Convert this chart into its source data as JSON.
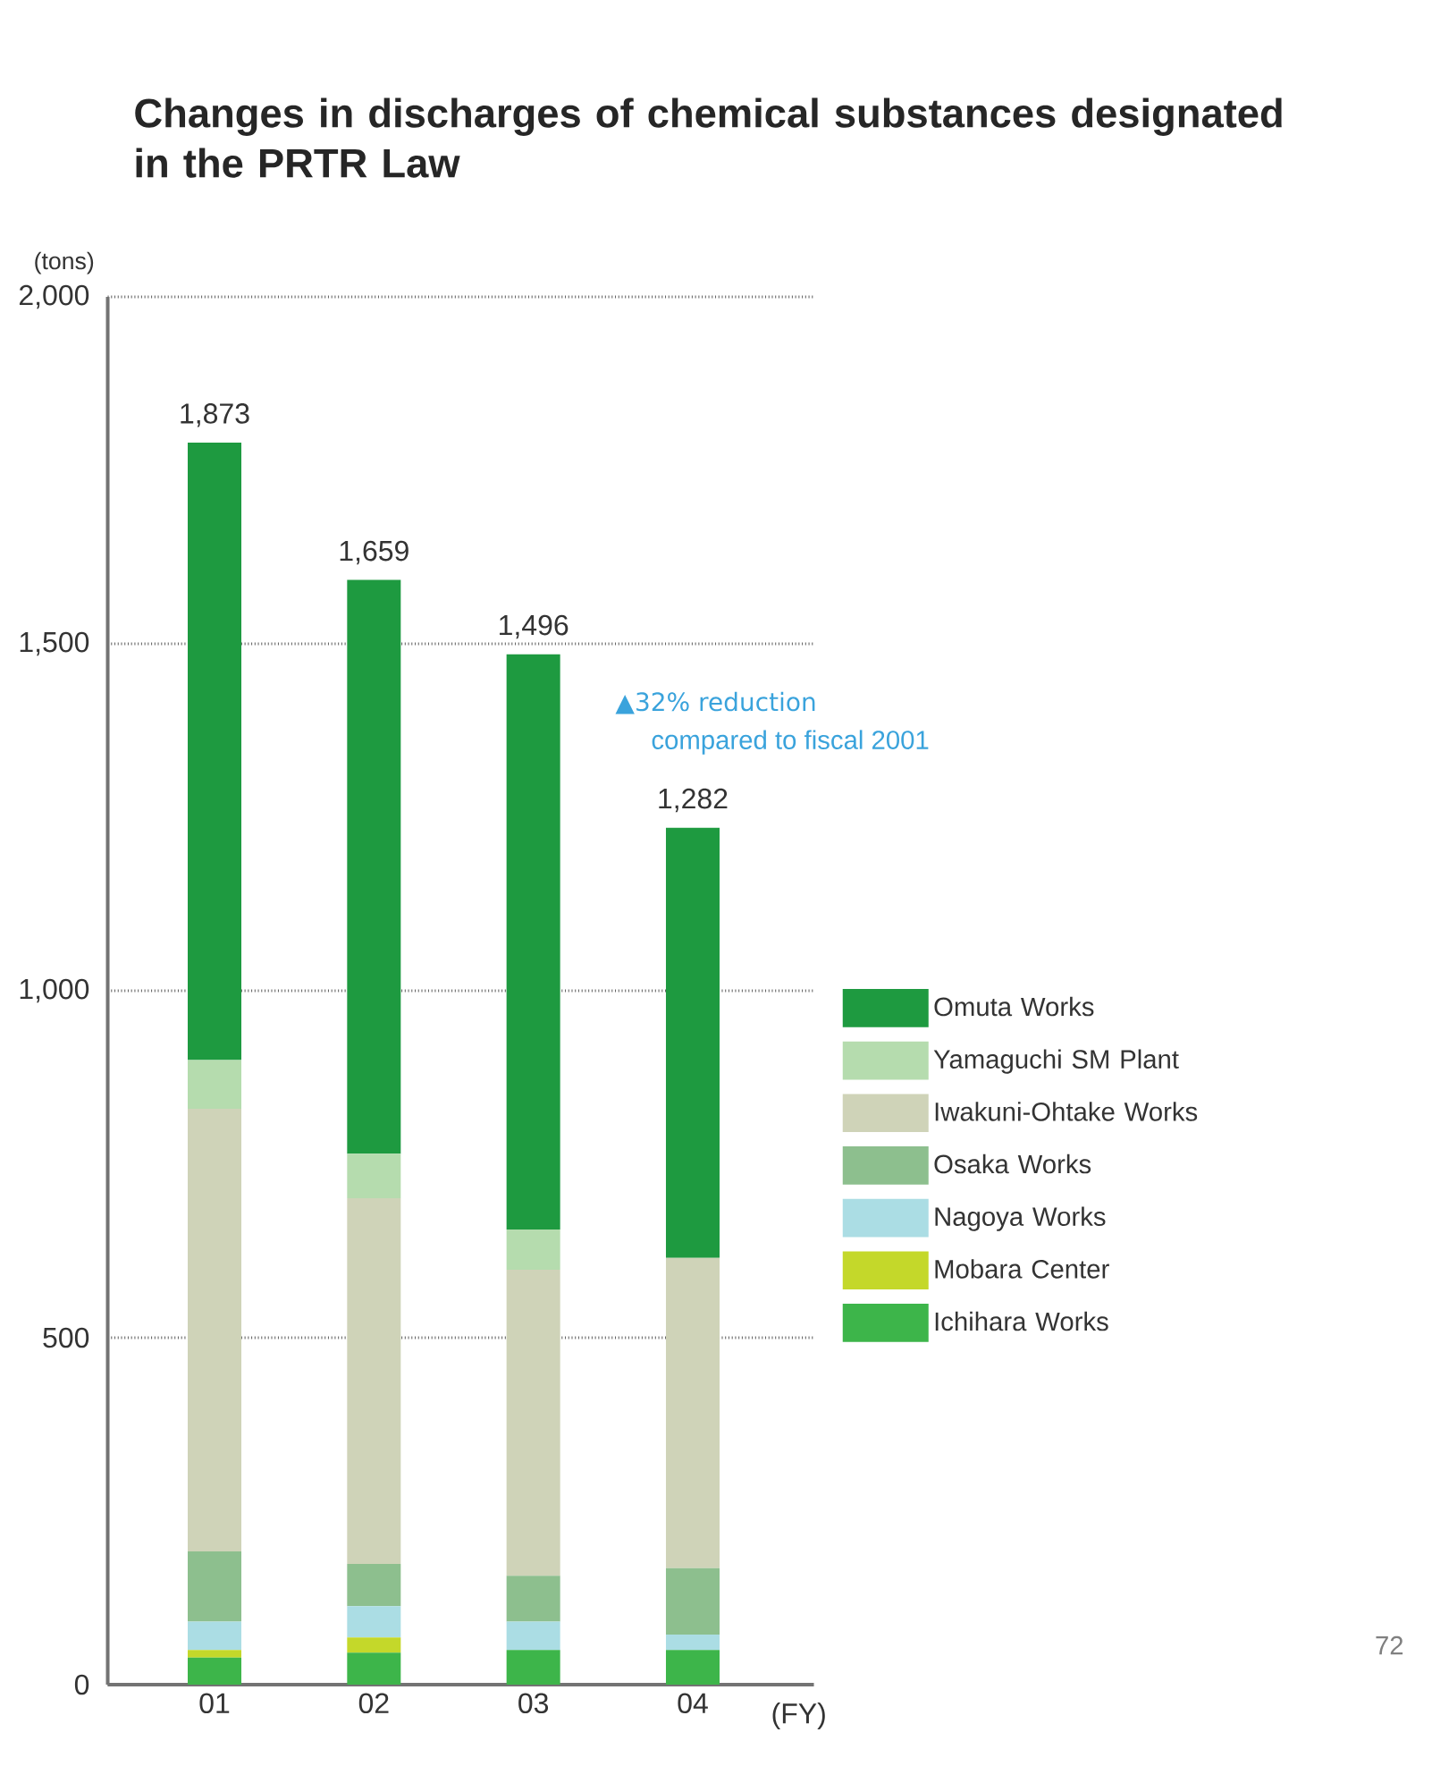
{
  "chart_data": {
    "type": "bar",
    "stacked": true,
    "title": "Changes in discharges of chemical substances designated in the PRTR Law",
    "ylabel": "(tons)",
    "xlabel": "(FY)",
    "categories": [
      "01",
      "02",
      "03",
      "04"
    ],
    "series": [
      {
        "name": "Ichihara Works",
        "color": "#3db54a",
        "values": [
          39,
          46,
          50,
          50
        ]
      },
      {
        "name": "Mobara Center",
        "color": "#c4d82a",
        "values": [
          11,
          22,
          0,
          0
        ]
      },
      {
        "name": "Nagoya Works",
        "color": "#abdde4",
        "values": [
          41,
          45,
          41,
          22
        ]
      },
      {
        "name": "Osaka Works",
        "color": "#8dbf8e",
        "values": [
          101,
          61,
          66,
          96
        ]
      },
      {
        "name": "Iwakuni-Ohtake Works",
        "color": "#cfd3b8",
        "values": [
          638,
          527,
          441,
          447
        ]
      },
      {
        "name": "Yamaguchi SM Plant",
        "color": "#b5dcae",
        "values": [
          70,
          64,
          58,
          0
        ]
      },
      {
        "name": "Omuta Works",
        "color": "#1e9a40",
        "values": [
          890,
          827,
          829,
          620
        ]
      }
    ],
    "ylim": [
      0,
      2000
    ],
    "yticks": [
      0,
      {
        "value": 500,
        "label": "500"
      },
      {
        "value": 1000,
        "label": "1,000"
      },
      {
        "value": 1500,
        "label": "1,500"
      },
      {
        "value": 2000,
        "label": "2,000"
      }
    ],
    "annotations": [
      {
        "text": "1,873",
        "x": "01",
        "y": 1790
      },
      {
        "text": "1,659",
        "x": "02",
        "y": 1592
      },
      {
        "text": "1,496",
        "x": "03",
        "y": 1485
      },
      {
        "text": "1,282",
        "x": "04",
        "y": 1235
      },
      "▲32% reduction",
      "compared to fiscal 2001",
      "72"
    ],
    "grid": "y",
    "legend": "right"
  }
}
